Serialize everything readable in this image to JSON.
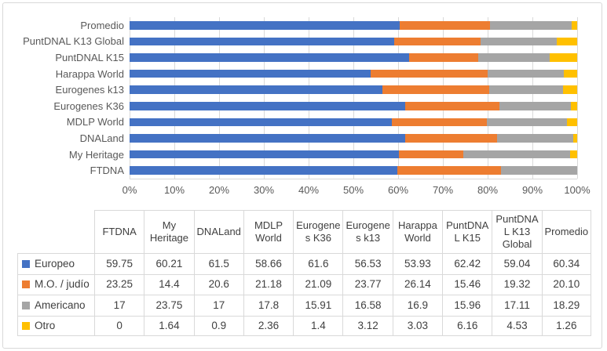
{
  "colors": {
    "europeo": "#4472C4",
    "mo_judio": "#ED7D31",
    "americano": "#A5A5A5",
    "otro": "#FFC000",
    "gridline": "#D9D9D9",
    "axis_text": "#595959",
    "table_text": "#404040",
    "frame_border": "#D9D9D9",
    "background": "#FFFFFF"
  },
  "chart_data": {
    "type": "bar",
    "subtype": "100-percent-stacked-horizontal",
    "title": "",
    "xlabel": "",
    "ylabel": "",
    "grid": true,
    "legend_position": "table-left-column",
    "x_axis": {
      "min": 0,
      "max": 100,
      "tick_step": 10,
      "tick_labels": [
        "0%",
        "10%",
        "20%",
        "30%",
        "40%",
        "50%",
        "60%",
        "70%",
        "80%",
        "90%",
        "100%"
      ]
    },
    "categories": [
      "FTDNA",
      "My Heritage",
      "DNALand",
      "MDLP World",
      "Eurogenes K36",
      "Eurogenes k13",
      "Harappa World",
      "PuntDNAL K15",
      "PuntDNAL K13 Global",
      "Promedio"
    ],
    "bar_order_top_to_bottom": [
      "Promedio",
      "PuntDNAL K13 Global",
      "PuntDNAL K15",
      "Harappa World",
      "Eurogenes k13",
      "Eurogenes K36",
      "MDLP World",
      "DNALand",
      "My Heritage",
      "FTDNA"
    ],
    "series": [
      {
        "name": "Europeo",
        "color": "#4472C4",
        "values": [
          "59.75",
          "60.21",
          "61.5",
          "58.66",
          "61.6",
          "56.53",
          "53.93",
          "62.42",
          "59.04",
          "60.34"
        ]
      },
      {
        "name": "M.O. / judío",
        "color": "#ED7D31",
        "values": [
          "23.25",
          "14.4",
          "20.6",
          "21.18",
          "21.09",
          "23.77",
          "26.14",
          "15.46",
          "19.32",
          "20.10"
        ]
      },
      {
        "name": "Americano",
        "color": "#A5A5A5",
        "values": [
          "17",
          "23.75",
          "17",
          "17.8",
          "15.91",
          "16.58",
          "16.9",
          "15.96",
          "17.11",
          "18.29"
        ]
      },
      {
        "name": "Otro",
        "color": "#FFC000",
        "values": [
          "0",
          "1.64",
          "0.9",
          "2.36",
          "1.4",
          "3.12",
          "3.03",
          "6.16",
          "4.53",
          "1.26"
        ]
      }
    ]
  },
  "table": {
    "corner_cell": "",
    "column_headers": [
      "FTDNA",
      "My Heritage",
      "DNALand",
      "MDLP World",
      "Eurogenes K36",
      "Eurogenes k13",
      "Harappa World",
      "PuntDNAL K15",
      "PuntDNAL K13 Global",
      "Promedio"
    ],
    "row_labels": [
      "Europeo",
      "M.O. / judío",
      "Americano",
      "Otro"
    ]
  }
}
